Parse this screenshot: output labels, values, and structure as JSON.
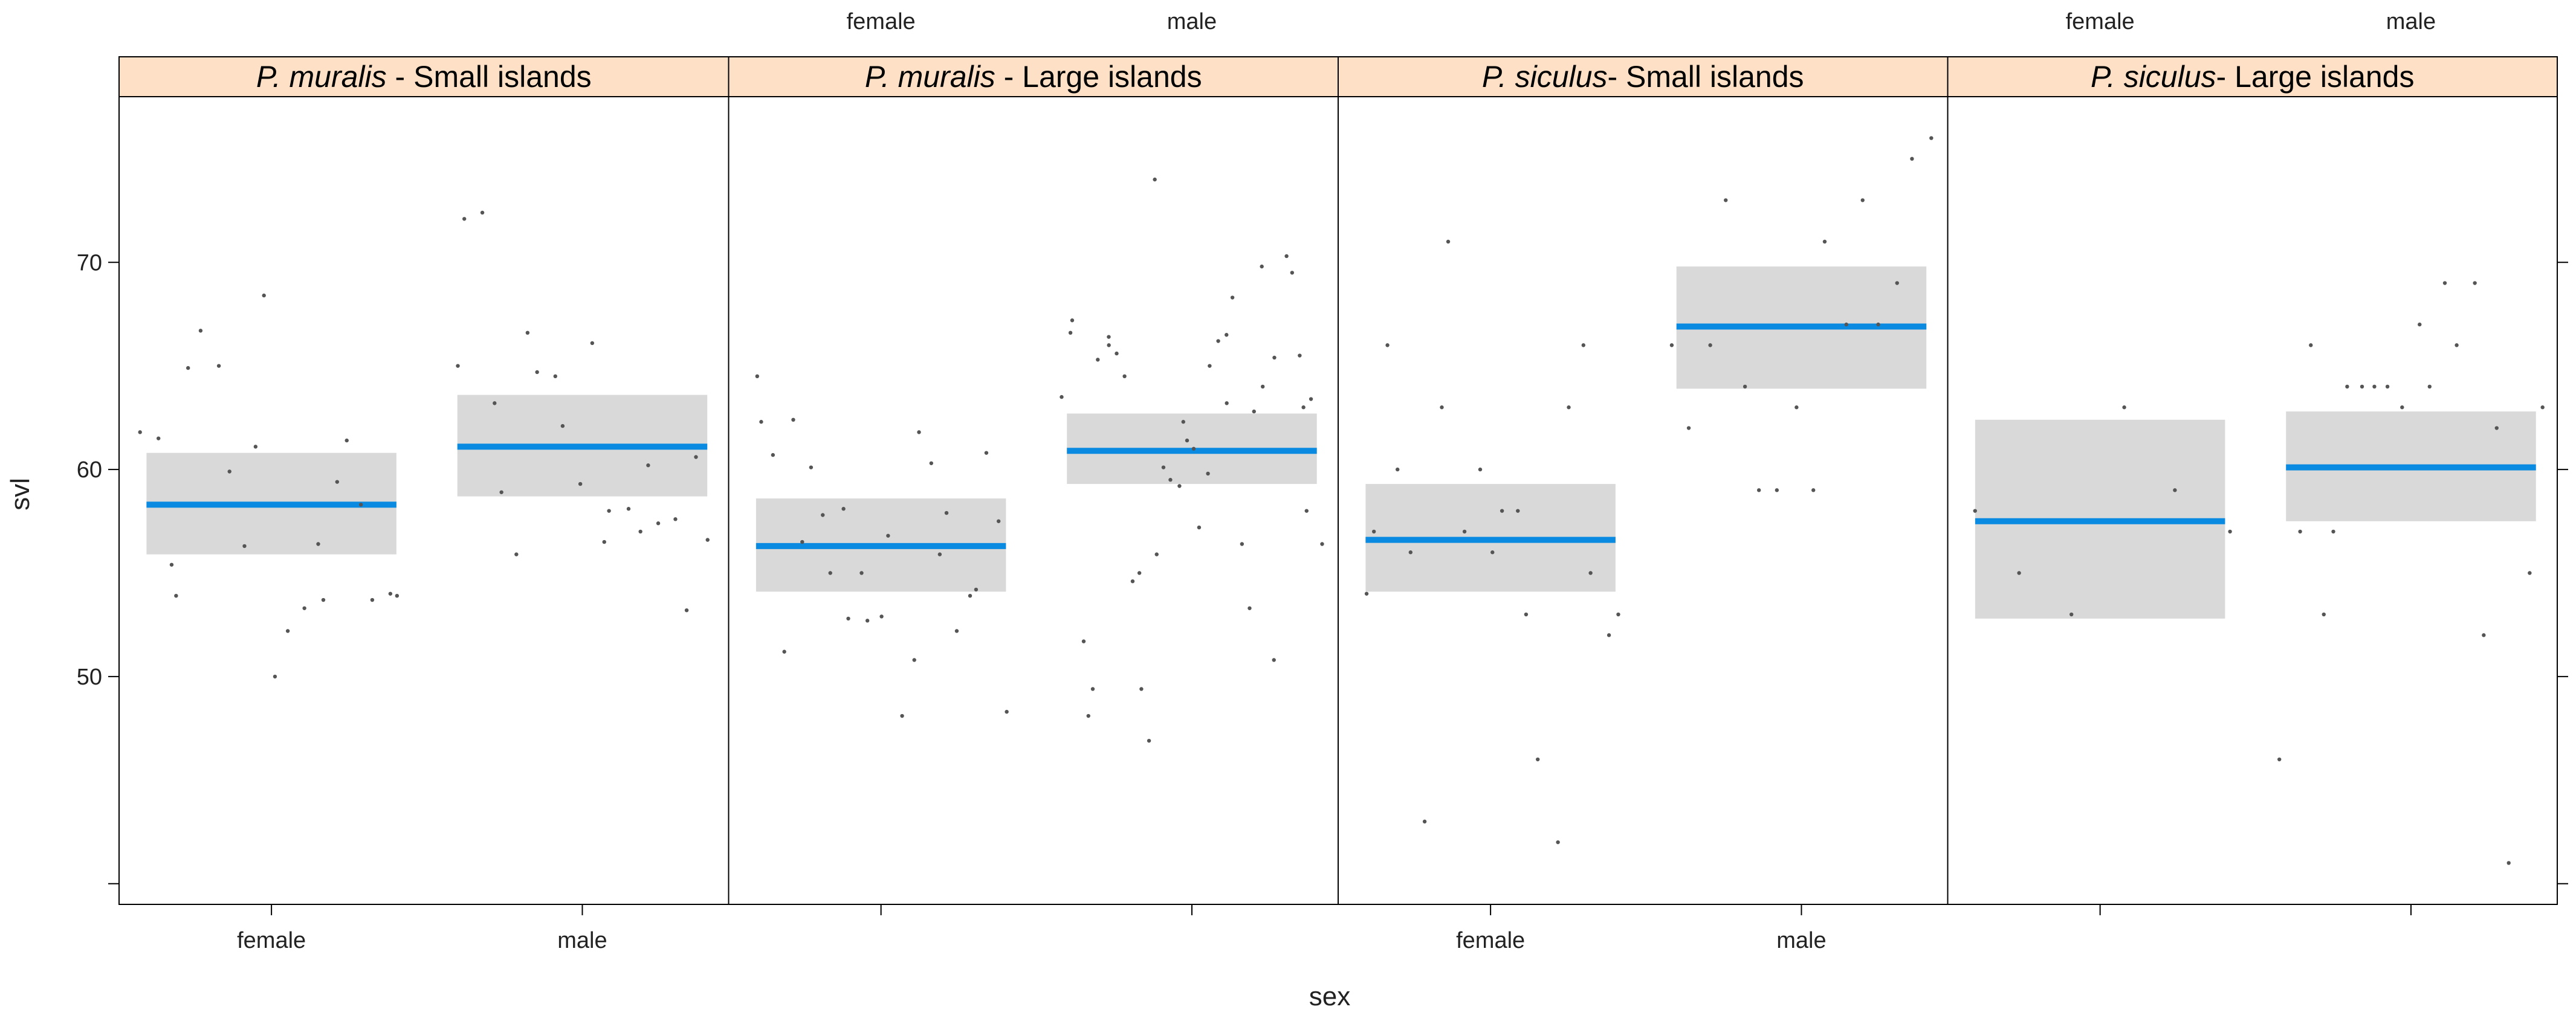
{
  "chart_data": {
    "type": "scatter",
    "description_hidden": false,
    "xlabel": "sex",
    "ylabel": "svl",
    "categories": [
      "female",
      "male"
    ],
    "ylim": [
      39,
      78
    ],
    "yticks": [
      50,
      60,
      70
    ],
    "colors": {
      "fit_line": "#0a8ae0",
      "ci_band": "#d9d9d9",
      "points": "#555555",
      "strip": "#fde0c5"
    },
    "panels": [
      {
        "species": "P. muralis",
        "sep": " - ",
        "group": "Small islands",
        "fits": [
          {
            "category": "female",
            "fit": 58.3,
            "lower": 55.9,
            "upper": 60.8
          },
          {
            "category": "male",
            "fit": 61.1,
            "lower": 58.7,
            "upper": 63.6
          }
        ],
        "points": [
          {
            "category": "female",
            "values": [
              61.8,
              61.5,
              55.4,
              53.9,
              64.9,
              66.7,
              65.0,
              59.9,
              56.3,
              61.1,
              68.4,
              50.0,
              52.2,
              53.3,
              56.4,
              53.7,
              59.4,
              61.4,
              58.3,
              53.7,
              54.0,
              53.9
            ]
          },
          {
            "category": "male",
            "values": [
              65.0,
              72.1,
              72.4,
              63.2,
              58.9,
              55.9,
              66.6,
              64.7,
              64.5,
              62.1,
              59.3,
              66.1,
              56.5,
              58.0,
              58.1,
              57.0,
              60.2,
              57.4,
              57.6,
              53.2,
              60.6,
              56.6
            ]
          }
        ]
      },
      {
        "species": "P. muralis",
        "sep": " - ",
        "group": "Large islands",
        "fits": [
          {
            "category": "female",
            "fit": 56.3,
            "lower": 54.1,
            "upper": 58.6
          },
          {
            "category": "male",
            "fit": 60.9,
            "lower": 59.3,
            "upper": 62.7
          }
        ],
        "points": [
          {
            "category": "female",
            "values": [
              64.5,
              62.3,
              60.7,
              51.2,
              62.4,
              56.5,
              60.1,
              57.8,
              55.0,
              58.1,
              52.8,
              55.0,
              52.7,
              52.9,
              56.8,
              48.1,
              50.8,
              61.8,
              60.3,
              55.9,
              57.9,
              52.2,
              53.9,
              54.2,
              60.8,
              57.5,
              48.3
            ]
          },
          {
            "category": "male",
            "values": [
              63.5,
              66.6,
              67.2,
              51.7,
              48.1,
              49.4,
              65.3,
              66.0,
              66.4,
              65.6,
              64.5,
              54.6,
              55.0,
              49.4,
              46.9,
              74.0,
              55.9,
              60.1,
              59.5,
              59.2,
              62.3,
              61.4,
              61.0,
              57.2,
              59.8,
              65.0,
              66.2,
              66.5,
              63.2,
              68.3,
              56.4,
              53.3,
              62.8,
              69.8,
              64.0,
              50.8,
              65.4,
              70.3,
              69.5,
              65.5,
              63.0,
              58.0,
              63.4,
              56.4
            ]
          }
        ]
      },
      {
        "species": "P. siculus",
        "sep": "- ",
        "group": "Small islands",
        "fits": [
          {
            "category": "female",
            "fit": 56.6,
            "lower": 54.1,
            "upper": 59.3
          },
          {
            "category": "male",
            "fit": 66.9,
            "lower": 63.9,
            "upper": 69.8
          }
        ],
        "points": [
          {
            "category": "female",
            "values": [
              54.0,
              57.0,
              66.0,
              60.0,
              56.0,
              43.0,
              63.0,
              71.0,
              57.0,
              60.0,
              56.0,
              58.0,
              58.0,
              53.0,
              46.0,
              42.0,
              63.0,
              66.0,
              55.0,
              52.0,
              53.0
            ]
          },
          {
            "category": "male",
            "values": [
              66.0,
              62.0,
              66.0,
              73.0,
              64.0,
              59.0,
              59.0,
              63.0,
              59.0,
              71.0,
              67.0,
              73.0,
              67.0,
              69.0,
              75.0,
              76.0
            ]
          }
        ]
      },
      {
        "species": "P. siculus",
        "sep": "- ",
        "group": "Large islands",
        "fits": [
          {
            "category": "female",
            "fit": 57.5,
            "lower": 52.8,
            "upper": 62.4
          },
          {
            "category": "male",
            "fit": 60.1,
            "lower": 57.5,
            "upper": 62.8
          }
        ],
        "points": [
          {
            "category": "female",
            "values": [
              58.0,
              55.0,
              53.0,
              63.0,
              59.0,
              57.0
            ]
          },
          {
            "category": "male",
            "values": [
              46.0,
              57.0,
              66.0,
              53.0,
              57.0,
              64.0,
              64.0,
              64.0,
              64.0,
              63.0,
              67.0,
              64.0,
              69.0,
              66.0,
              69.0,
              52.0,
              62.0,
              41.0,
              55.0,
              63.0
            ]
          }
        ]
      }
    ]
  }
}
